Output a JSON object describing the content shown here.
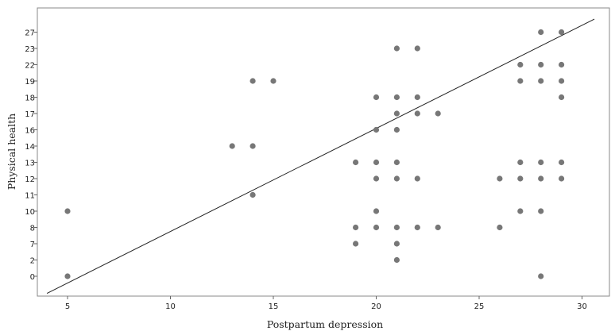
{
  "chart_data": {
    "type": "scatter",
    "title": "",
    "xlabel": "Postpartum depression",
    "ylabel": "Physical health",
    "x_ticks": [
      5,
      10,
      15,
      20,
      25,
      30
    ],
    "y_tick_labels": [
      "0",
      "2",
      "7",
      "8",
      "10",
      "11",
      "12",
      "13",
      "14",
      "16",
      "17",
      "18",
      "19",
      "22",
      "23",
      "27"
    ],
    "xlim": [
      3.9,
      31.2
    ],
    "y_axis_note": "y tick labels are evenly spaced categories (ordinal axis)",
    "grid": false,
    "legend": "none",
    "marker_color": "#777777",
    "line_color": "#222222",
    "points": [
      {
        "x": 5,
        "y": "10"
      },
      {
        "x": 5,
        "y": "0"
      },
      {
        "x": 13,
        "y": "14"
      },
      {
        "x": 14,
        "y": "14"
      },
      {
        "x": 14,
        "y": "19"
      },
      {
        "x": 15,
        "y": "19"
      },
      {
        "x": 14,
        "y": "11"
      },
      {
        "x": 19,
        "y": "13"
      },
      {
        "x": 19,
        "y": "8"
      },
      {
        "x": 19,
        "y": "7"
      },
      {
        "x": 20,
        "y": "18"
      },
      {
        "x": 20,
        "y": "16"
      },
      {
        "x": 20,
        "y": "13"
      },
      {
        "x": 20,
        "y": "12"
      },
      {
        "x": 20,
        "y": "10"
      },
      {
        "x": 20,
        "y": "8"
      },
      {
        "x": 21,
        "y": "23"
      },
      {
        "x": 21,
        "y": "18"
      },
      {
        "x": 21,
        "y": "17"
      },
      {
        "x": 21,
        "y": "16"
      },
      {
        "x": 21,
        "y": "13"
      },
      {
        "x": 21,
        "y": "12"
      },
      {
        "x": 21,
        "y": "8"
      },
      {
        "x": 21,
        "y": "7"
      },
      {
        "x": 21,
        "y": "2"
      },
      {
        "x": 22,
        "y": "23"
      },
      {
        "x": 22,
        "y": "18"
      },
      {
        "x": 22,
        "y": "17"
      },
      {
        "x": 22,
        "y": "12"
      },
      {
        "x": 22,
        "y": "8"
      },
      {
        "x": 23,
        "y": "17"
      },
      {
        "x": 23,
        "y": "8"
      },
      {
        "x": 26,
        "y": "12"
      },
      {
        "x": 26,
        "y": "8"
      },
      {
        "x": 27,
        "y": "22"
      },
      {
        "x": 27,
        "y": "19"
      },
      {
        "x": 27,
        "y": "13"
      },
      {
        "x": 27,
        "y": "12"
      },
      {
        "x": 27,
        "y": "10"
      },
      {
        "x": 28,
        "y": "27"
      },
      {
        "x": 28,
        "y": "22"
      },
      {
        "x": 28,
        "y": "19"
      },
      {
        "x": 28,
        "y": "13"
      },
      {
        "x": 28,
        "y": "12"
      },
      {
        "x": 28,
        "y": "10"
      },
      {
        "x": 28,
        "y": "0"
      },
      {
        "x": 29,
        "y": "27"
      },
      {
        "x": 29,
        "y": "22"
      },
      {
        "x": 29,
        "y": "19"
      },
      {
        "x": 29,
        "y": "18"
      },
      {
        "x": 29,
        "y": "13"
      },
      {
        "x": 29,
        "y": "12"
      }
    ],
    "fit_line": {
      "x": [
        4,
        30.6
      ],
      "y_index": [
        -1.05,
        15.8
      ]
    }
  }
}
